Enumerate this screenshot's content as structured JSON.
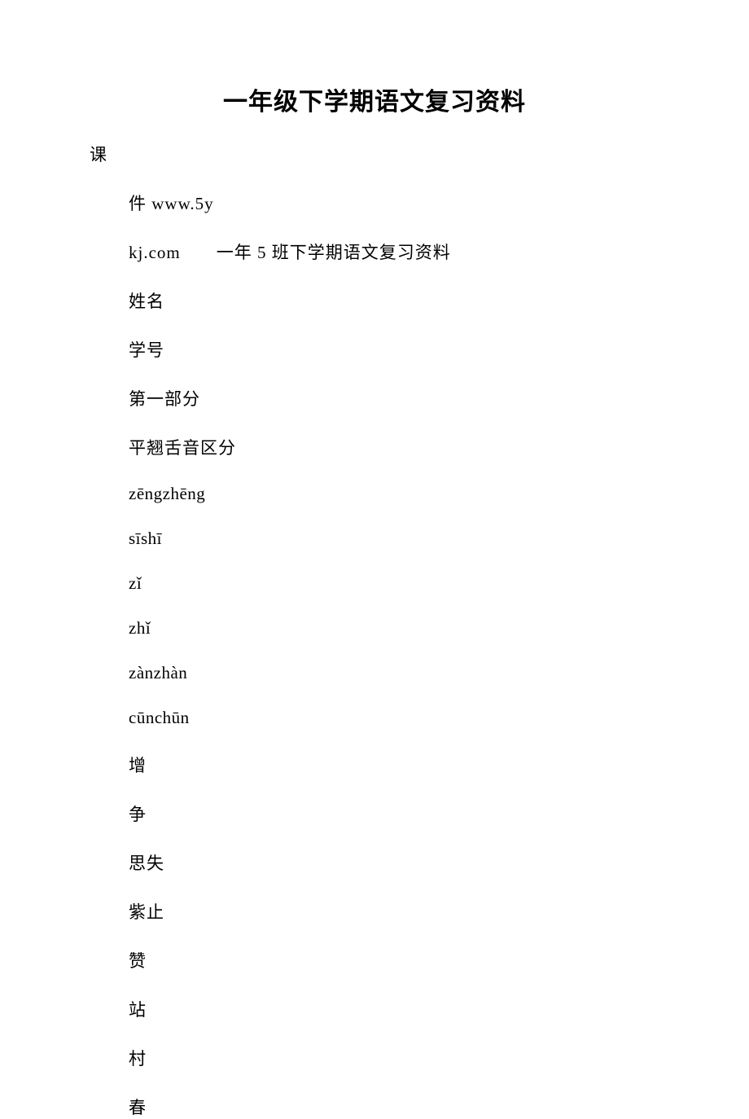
{
  "title": "一年级下学期语文复习资料",
  "firstLine": "课",
  "lines": [
    "件 www.5y",
    "kj.com　　一年 5 班下学期语文复习资料",
    "姓名",
    "学号",
    "第一部分",
    "平翘舌音区分",
    "zēngzhēng",
    "sīshī",
    "zǐ",
    "zhǐ",
    "zànzhàn",
    "cūnchūn",
    "增",
    "争",
    "思失",
    "紫止",
    "赞",
    "站",
    "村",
    "春"
  ]
}
